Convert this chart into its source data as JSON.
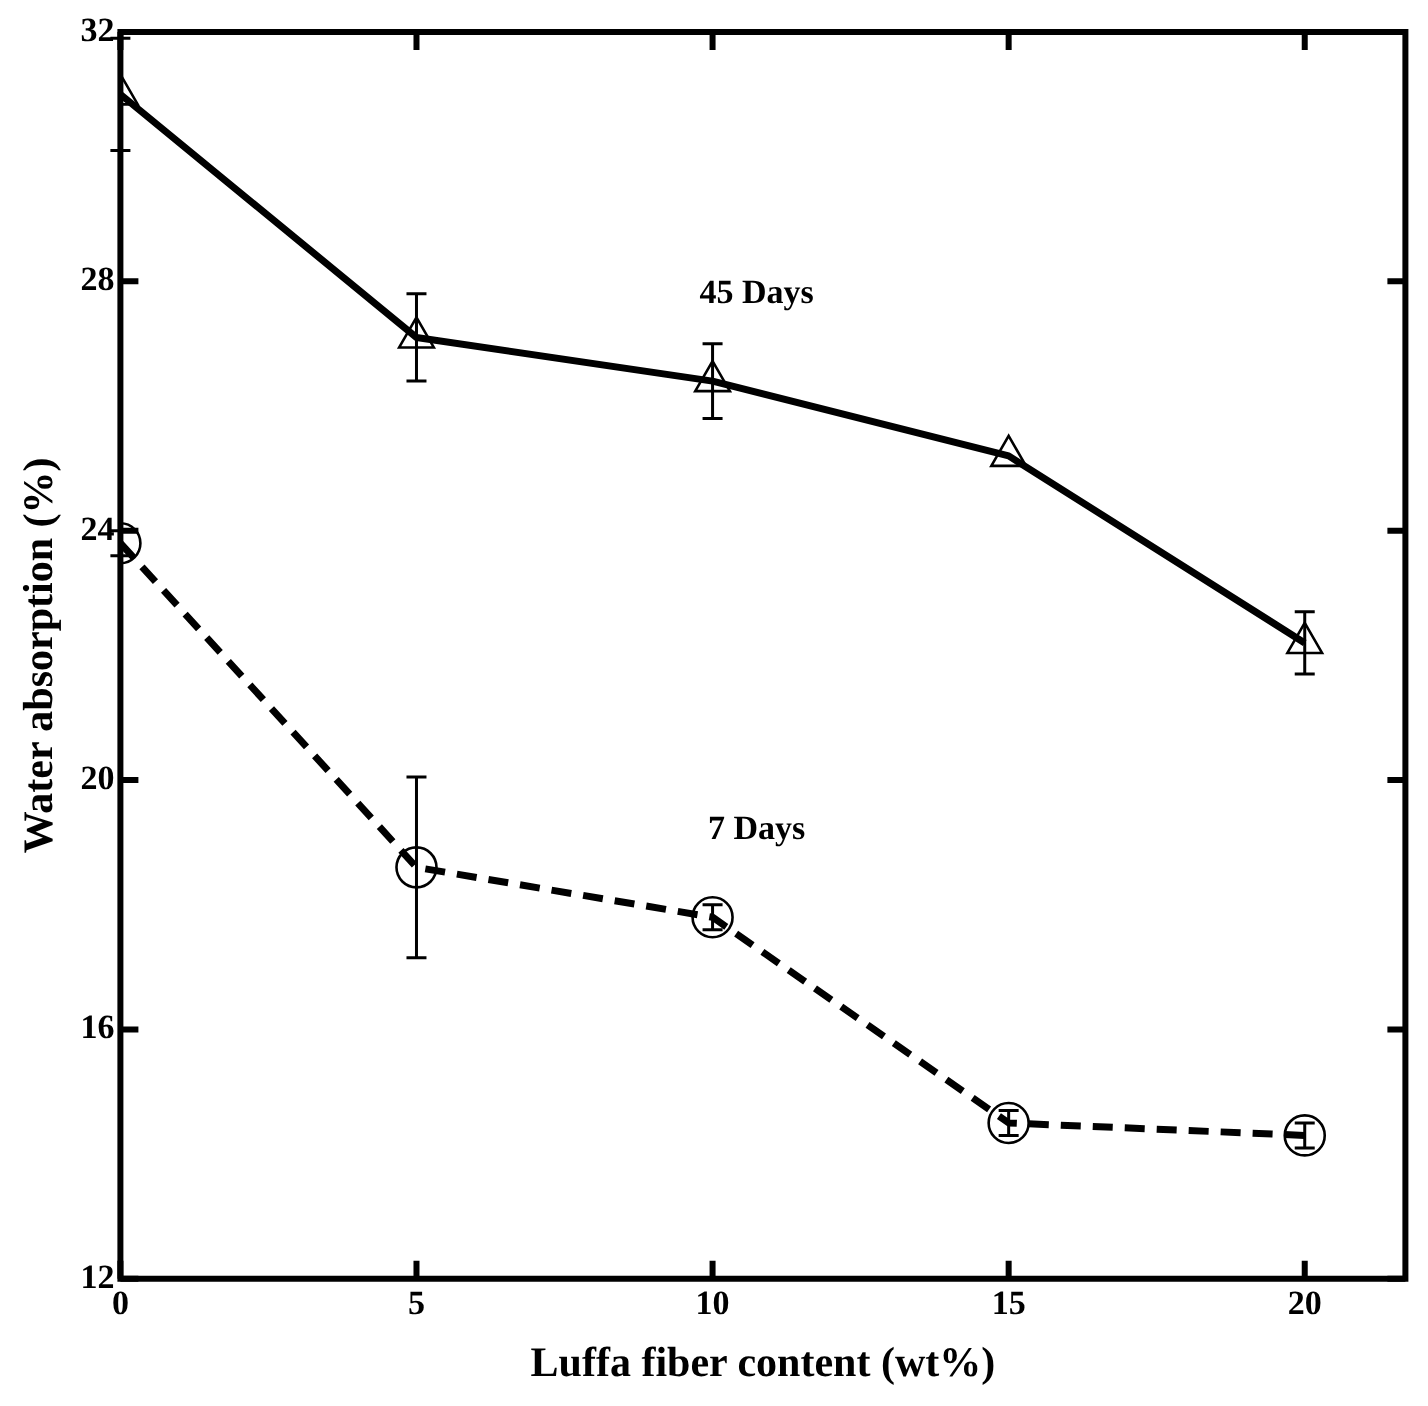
{
  "chart_data": {
    "type": "line",
    "xlabel": "Luffa fiber content (wt%)",
    "ylabel": "Water absorption (%)",
    "x": [
      0,
      5,
      10,
      15,
      20
    ],
    "xlim": [
      0,
      21.7
    ],
    "xticks": [
      0,
      5,
      10,
      15,
      20
    ],
    "ylim": [
      12,
      32
    ],
    "yticks": [
      12,
      16,
      20,
      24,
      28,
      32
    ],
    "grid": false,
    "legend": false,
    "series": [
      {
        "name": "45 Days",
        "color": "#000000",
        "marker": "triangle",
        "line_style": "solid",
        "values": [
          31,
          27.1,
          26.4,
          25.2,
          22.2
        ],
        "errors": [
          0.9,
          0.7,
          0.6,
          null,
          0.5
        ]
      },
      {
        "name": "7 Days",
        "color": "#000000",
        "marker": "circle",
        "line_style": "dashed",
        "values": [
          23.8,
          18.6,
          17.8,
          14.5,
          14.3
        ],
        "errors": [
          0.2,
          1.45,
          0.2,
          0.2,
          0.2
        ]
      }
    ]
  }
}
